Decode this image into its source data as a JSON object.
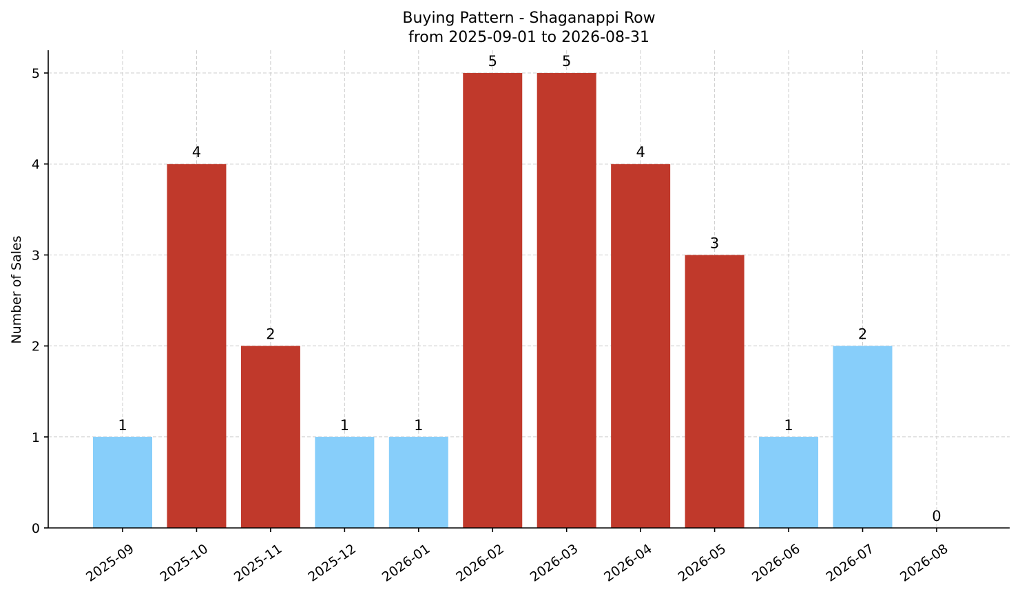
{
  "chart_data": {
    "type": "bar",
    "title": "Buying Pattern - Shaganappi Row",
    "subtitle": "from 2025-09-01 to 2026-08-31",
    "xlabel": "",
    "ylabel": "Number of Sales",
    "categories": [
      "2025-09",
      "2025-10",
      "2025-11",
      "2025-12",
      "2026-01",
      "2026-02",
      "2026-03",
      "2026-04",
      "2026-05",
      "2026-06",
      "2026-07",
      "2026-08"
    ],
    "values": [
      1,
      4,
      2,
      1,
      1,
      5,
      5,
      4,
      3,
      1,
      2,
      0
    ],
    "highlight": [
      false,
      true,
      true,
      false,
      false,
      true,
      true,
      true,
      true,
      false,
      false,
      false
    ],
    "ylim": [
      0,
      5.25
    ],
    "yticks": [
      0,
      1,
      2,
      3,
      4,
      5
    ],
    "grid": true,
    "data_labels": true,
    "colors": {
      "bar_default": "#87cefa",
      "bar_highlight": "#c0392b",
      "grid": "#cccccc",
      "axis": "#000000"
    }
  }
}
